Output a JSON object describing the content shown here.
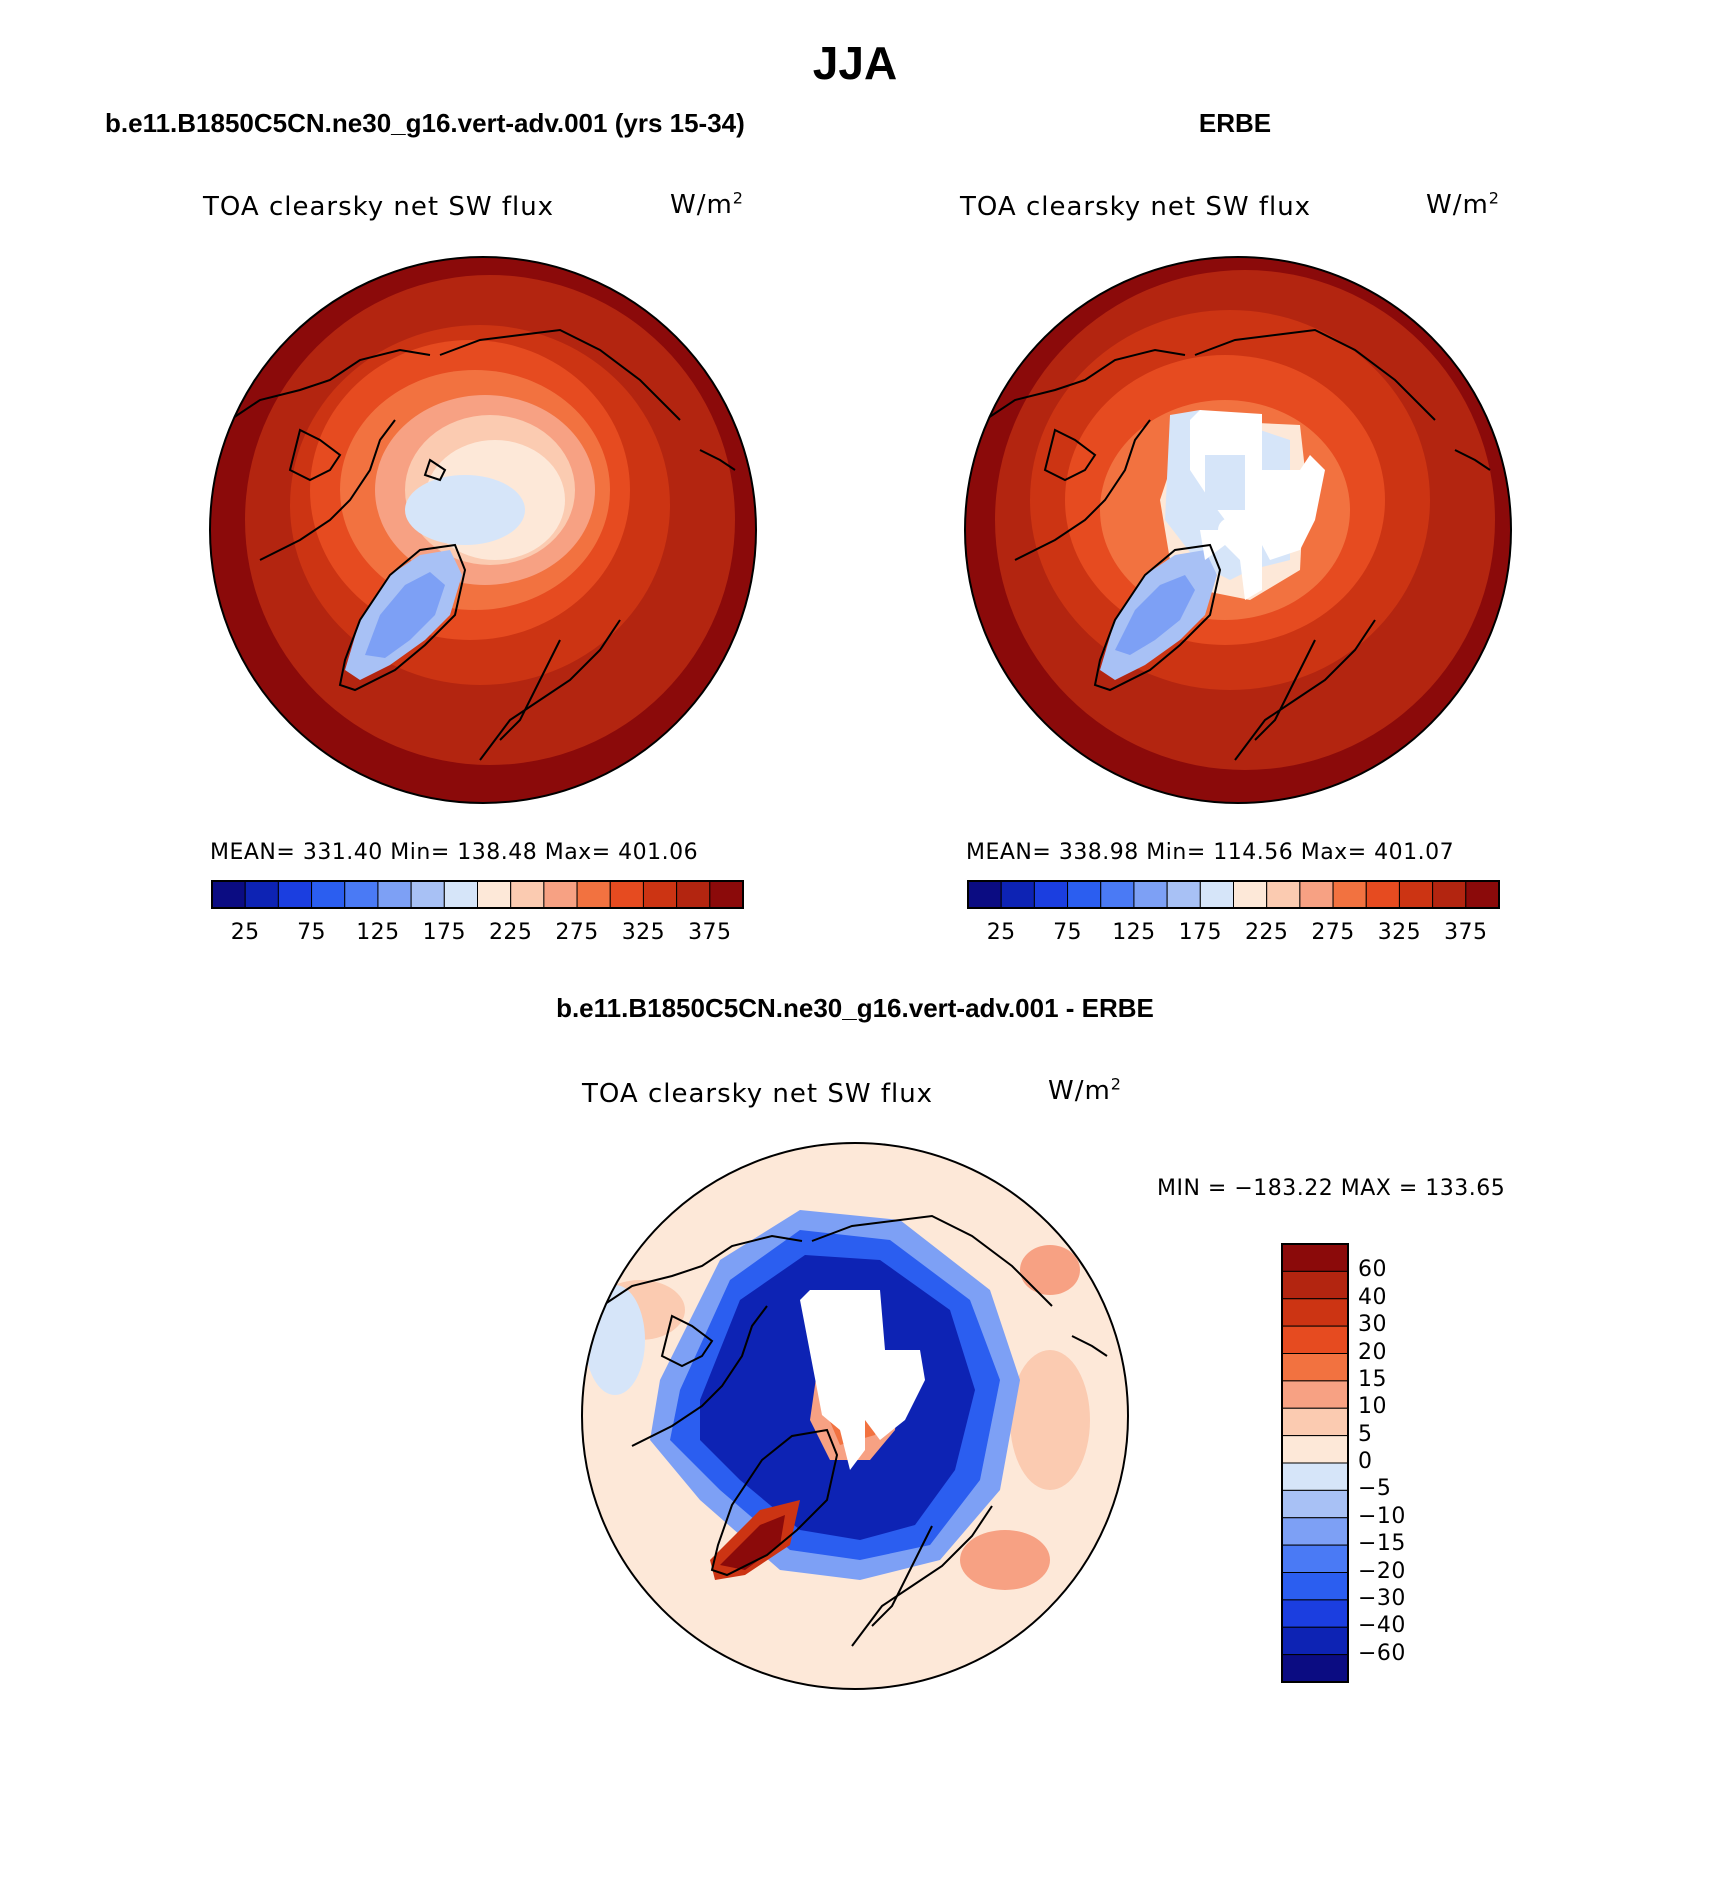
{
  "page": {
    "season": "JJA",
    "panel_left_title": "b.e11.B1850C5CN.ne30_g16.vert-adv.001 (yrs 15-34)",
    "panel_right_title": "ERBE",
    "panel_diff_title": "b.e11.B1850C5CN.ne30_g16.vert-adv.001 - ERBE",
    "variable": "TOA clearsky net SW flux",
    "units_base": "W/m",
    "units_exp": "2"
  },
  "chart_data": [
    {
      "type": "heatmap",
      "name": "model",
      "projection": "north-polar-stereographic",
      "title": "TOA clearsky net SW flux",
      "units": "W/m2",
      "stats_text": "MEAN= 331.40   Min= 138.48   Max= 401.06",
      "mean": 331.4,
      "min": 138.48,
      "max": 401.06,
      "levels": [
        25,
        50,
        75,
        100,
        125,
        150,
        175,
        200,
        225,
        250,
        275,
        300,
        325,
        350,
        375
      ],
      "tick_labels": [
        "25",
        "75",
        "125",
        "175",
        "225",
        "275",
        "325",
        "375"
      ],
      "colors": [
        "#0b0c82",
        "#0d23b4",
        "#1b3ee0",
        "#2b5ef0",
        "#4a7af5",
        "#7da0f5",
        "#a8c1f5",
        "#d6e5f9",
        "#fde8d8",
        "#fbcbb1",
        "#f7a183",
        "#f27240",
        "#e64b20",
        "#cc3413",
        "#b32510",
        "#8b0a0a"
      ]
    },
    {
      "type": "heatmap",
      "name": "observations",
      "projection": "north-polar-stereographic",
      "title": "TOA clearsky net SW flux",
      "units": "W/m2",
      "stats_text": "MEAN= 338.98   Min= 114.56   Max= 401.07",
      "mean": 338.98,
      "min": 114.56,
      "max": 401.07,
      "levels": [
        25,
        50,
        75,
        100,
        125,
        150,
        175,
        200,
        225,
        250,
        275,
        300,
        325,
        350,
        375
      ],
      "tick_labels": [
        "25",
        "75",
        "125",
        "175",
        "225",
        "275",
        "325",
        "375"
      ],
      "colors": [
        "#0b0c82",
        "#0d23b4",
        "#1b3ee0",
        "#2b5ef0",
        "#4a7af5",
        "#7da0f5",
        "#a8c1f5",
        "#d6e5f9",
        "#fde8d8",
        "#fbcbb1",
        "#f7a183",
        "#f27240",
        "#e64b20",
        "#cc3413",
        "#b32510",
        "#8b0a0a"
      ]
    },
    {
      "type": "heatmap",
      "name": "difference",
      "projection": "north-polar-stereographic",
      "title": "TOA clearsky net SW flux",
      "units": "W/m2",
      "stats_text": "MIN = −183.22 MAX = 133.65",
      "min": -183.22,
      "max": 133.65,
      "levels": [
        60,
        40,
        30,
        20,
        15,
        10,
        5,
        0,
        -5,
        -10,
        -15,
        -20,
        -30,
        -40,
        -60
      ],
      "level_labels": [
        "60",
        "40",
        "30",
        "20",
        "15",
        "10",
        "5",
        "0",
        "−5",
        "−10",
        "−15",
        "−20",
        "−30",
        "−40",
        "−60"
      ],
      "colors": [
        "#8b0a0a",
        "#b32510",
        "#cc3413",
        "#e64b20",
        "#f27240",
        "#f7a183",
        "#fbcbb1",
        "#fde8d8",
        "#d6e5f9",
        "#a8c1f5",
        "#7da0f5",
        "#4a7af5",
        "#2b5ef0",
        "#1b3ee0",
        "#0d23b4",
        "#0b0c82"
      ]
    }
  ]
}
